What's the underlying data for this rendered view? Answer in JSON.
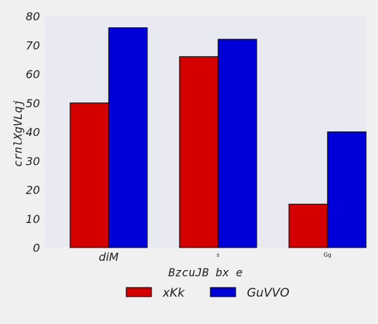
{
  "chart_data": {
    "type": "bar",
    "categories": [
      "diM",
      "s",
      "Gg"
    ],
    "series": [
      {
        "name": "xKk",
        "color": "#d40000",
        "values": [
          50,
          66,
          15
        ]
      },
      {
        "name": "GuVVO",
        "color": "#0000d8",
        "values": [
          76,
          72,
          40
        ]
      }
    ],
    "xlabel": "BzcuJB bx e",
    "ylabel": "crnlXgVLqj",
    "ylim": [
      0,
      80
    ],
    "yticks": [
      0,
      10,
      20,
      30,
      40,
      50,
      60,
      70,
      80
    ],
    "grid": false,
    "legend_position": "bottom-center",
    "plot_background": "#e9e9f2",
    "page_background": "#f0f0f0"
  }
}
